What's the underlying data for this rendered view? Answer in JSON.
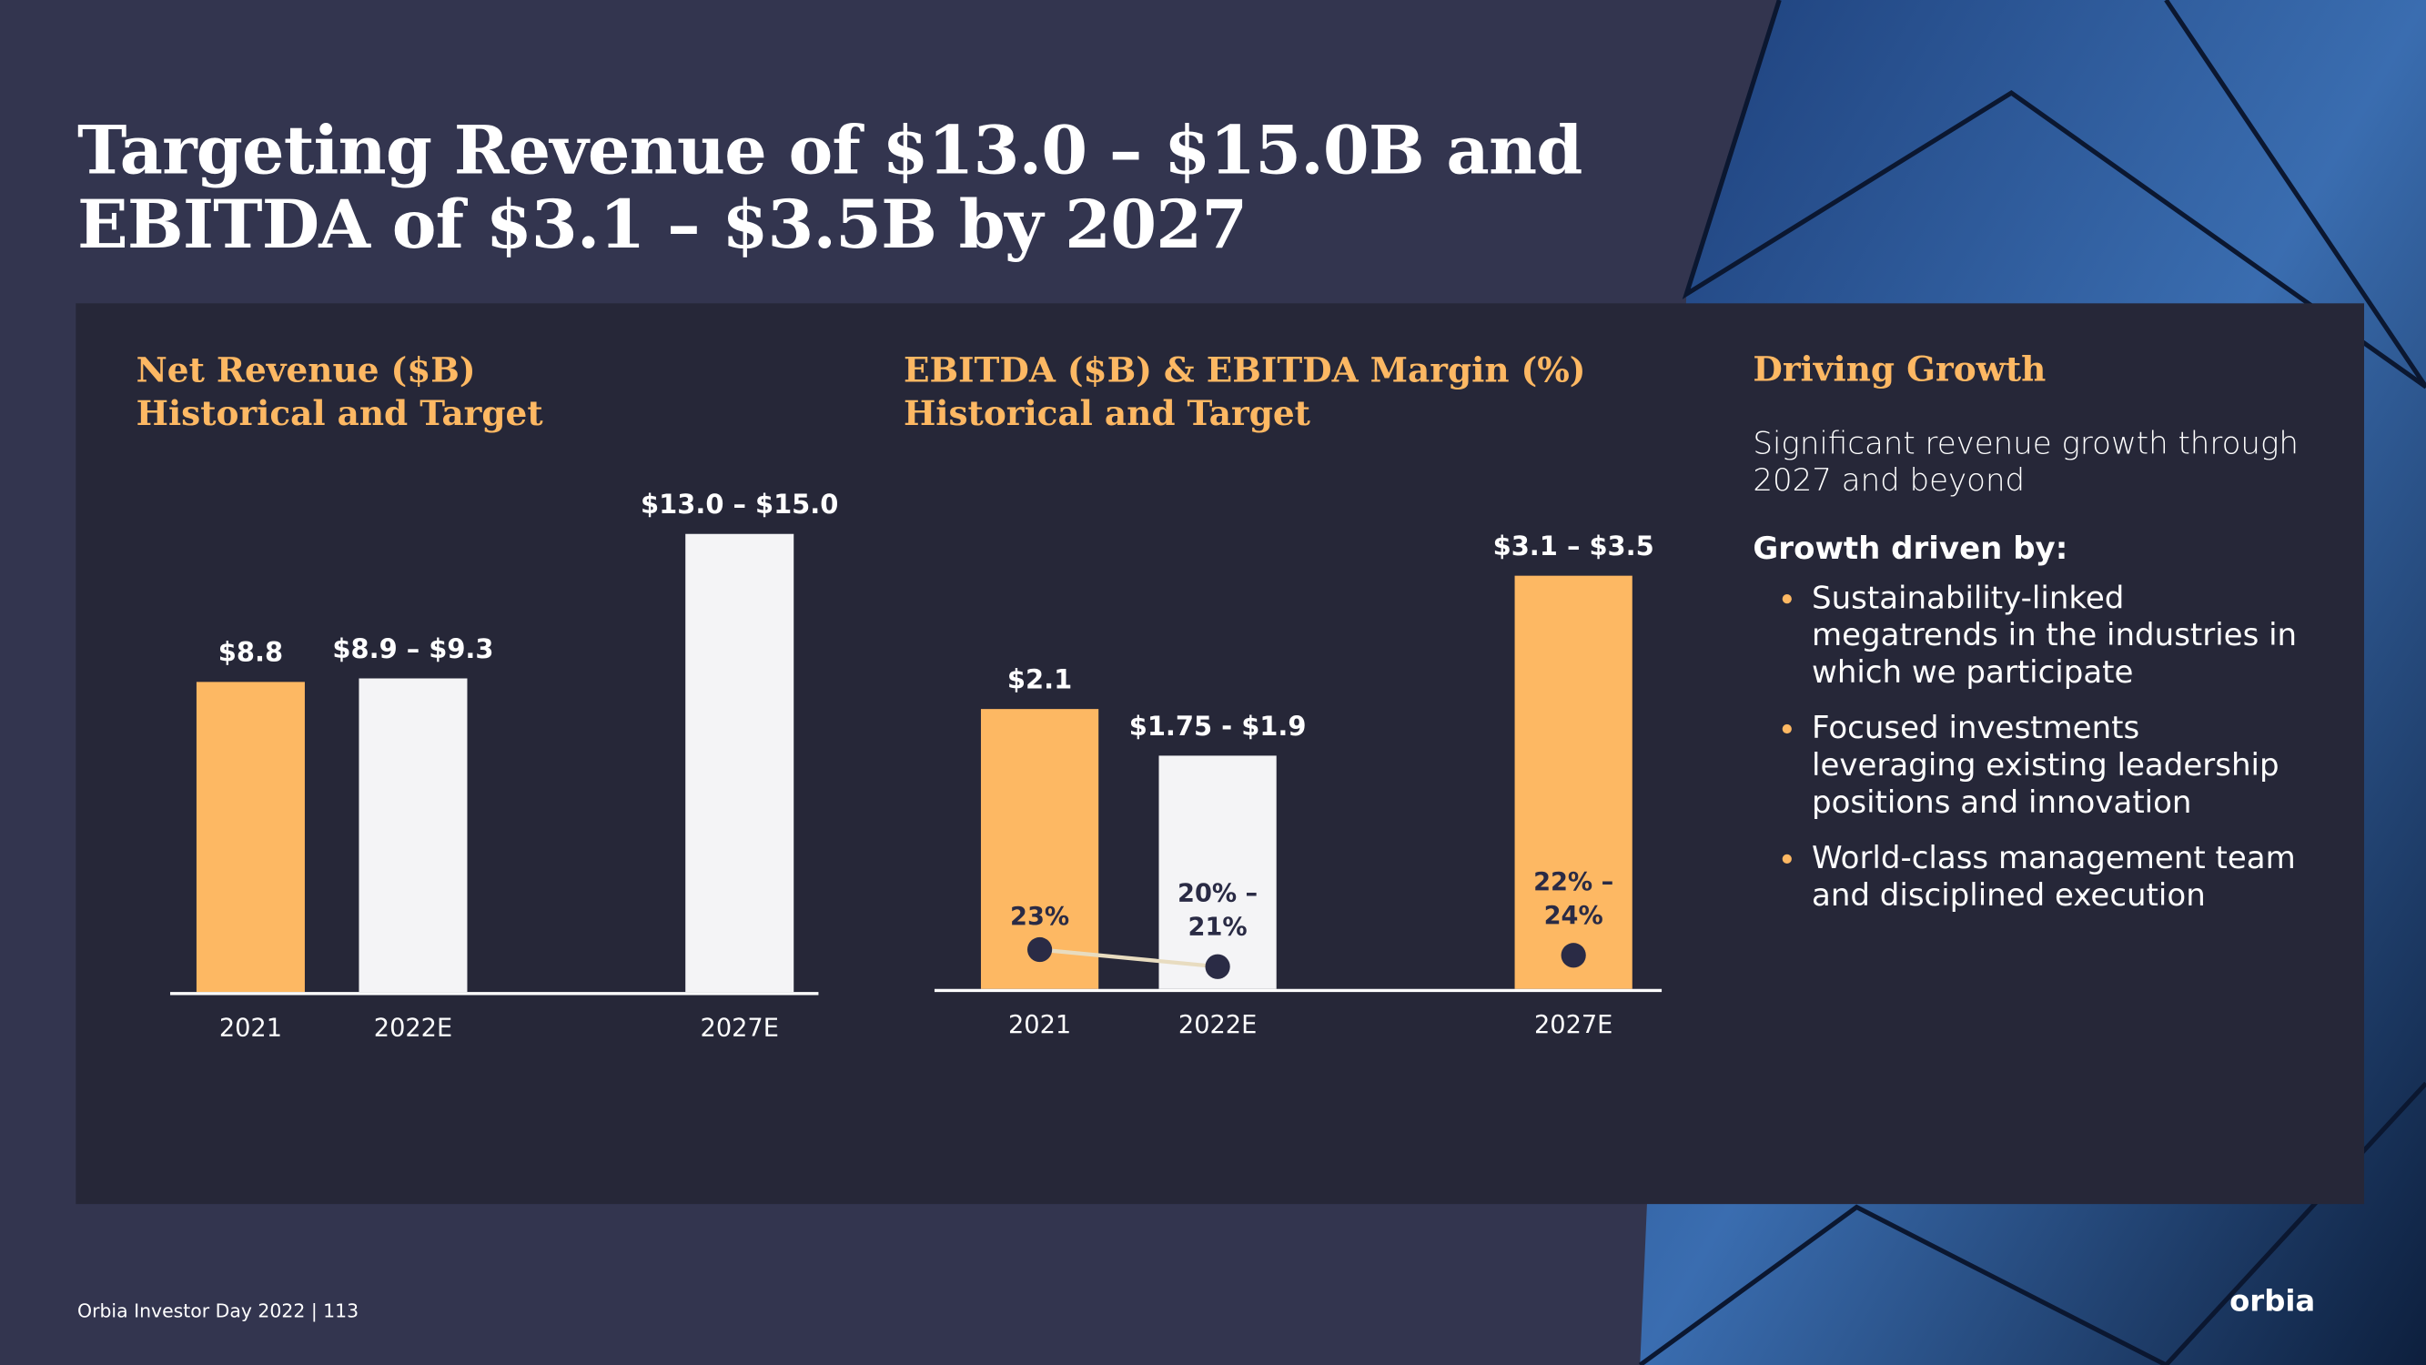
{
  "title": [
    "Targeting Revenue of $13.0 – $15.0B and",
    "EBITDA of $3.1 – $3.5B by 2027"
  ],
  "chart_data": [
    {
      "type": "bar",
      "title": [
        "Net Revenue ($B)",
        "Historical and Target"
      ],
      "categories": [
        "2021",
        "2022E",
        "2027E"
      ],
      "series": [
        {
          "name": "Net Revenue ($B)",
          "values": [
            8.8,
            8.9,
            13.0
          ],
          "value_labels": [
            "$8.8",
            "$8.9 – $9.3",
            "$13.0 – $15.0"
          ],
          "colors": [
            "#fdb863",
            "#f4f4f6",
            "#f4f4f6"
          ]
        }
      ]
    },
    {
      "type": "bar",
      "title": [
        "EBITDA ($B) & EBITDA Margin (%)",
        "Historical and Target"
      ],
      "categories": [
        "2021",
        "2022E",
        "2027E"
      ],
      "series": [
        {
          "name": "EBITDA ($B)",
          "values": [
            2.1,
            1.75,
            3.1
          ],
          "value_labels": [
            "$2.1",
            "$1.75 - $1.9",
            "$3.1 – $3.5"
          ],
          "colors": [
            "#fdb863",
            "#f4f4f6",
            "#fdb863"
          ]
        },
        {
          "name": "EBITDA Margin (%)",
          "type": "line",
          "values": [
            23,
            20,
            22
          ],
          "value_labels": [
            "23%",
            "20% – 21%",
            "22% – 24%"
          ],
          "color": "#2a2b45"
        }
      ]
    }
  ],
  "sidebar": {
    "heading": "Driving Growth",
    "text": "Significant revenue growth through 2027 and beyond",
    "subheading": "Growth driven by:",
    "bullets": [
      "Sustainability-linked megatrends in the industries in which we participate",
      "Focused investments leveraging existing leadership positions and innovation",
      "World-class management team and disciplined execution"
    ]
  },
  "footer": "Orbia Investor Day 2022 | 113",
  "logo": "orbia"
}
